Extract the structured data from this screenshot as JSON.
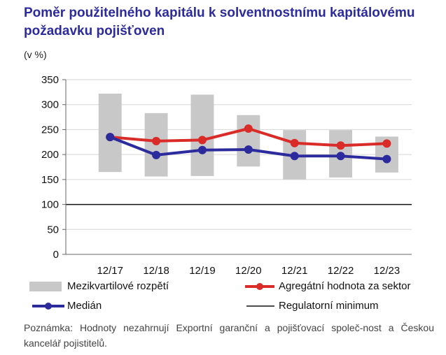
{
  "title": "Poměr použitelného kapitálu k solventnostnímu kapitálovému požadavku pojišťoven",
  "unit": "(v %)",
  "note": "Poznámka: Hodnoty nezahrnují Exportní garanční a pojišťovací společ-nost a Českou kancelář pojistitelů.",
  "colors": {
    "title": "#2b2b9e",
    "range": "#c8c8c8",
    "aggregate": "#d92b27",
    "median": "#2b2b9e",
    "minimum": "#111111"
  },
  "legend": {
    "range": "Mezikvartilové rozpětí",
    "aggregate": "Agregátní hodnota za sektor",
    "median": "Medián",
    "minimum": "Regulatorní minimum"
  },
  "chart_data": {
    "type": "line",
    "categories": [
      "12/17",
      "12/18",
      "12/19",
      "12/20",
      "12/21",
      "12/22",
      "12/23"
    ],
    "ylim": [
      0,
      350
    ],
    "yticks": [
      0,
      50,
      100,
      150,
      200,
      250,
      300,
      350
    ],
    "interquartile_range": {
      "name": "Mezikvartilové rozpětí",
      "low": [
        165,
        156,
        157,
        176,
        150,
        154,
        164
      ],
      "high": [
        322,
        283,
        320,
        279,
        249,
        249,
        236
      ]
    },
    "series": [
      {
        "name": "Agregátní hodnota za sektor",
        "values": [
          235,
          227,
          229,
          252,
          223,
          218,
          222
        ]
      },
      {
        "name": "Medián",
        "values": [
          235,
          199,
          209,
          210,
          197,
          197,
          191
        ]
      }
    ],
    "regulatory_minimum": {
      "name": "Regulatorní minimum",
      "value": 100
    }
  }
}
